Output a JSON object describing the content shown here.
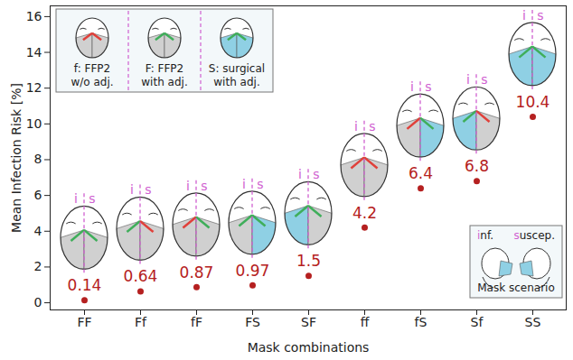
{
  "chart_data": {
    "type": "scatter",
    "x_label": "Mask combinations",
    "y_label": "Mean Infection Risk [%]",
    "categories": [
      "FF",
      "Ff",
      "fF",
      "FS",
      "SF",
      "ff",
      "fS",
      "Sf",
      "SS"
    ],
    "values": [
      0.14,
      0.64,
      0.87,
      0.97,
      1.5,
      4.2,
      6.4,
      6.8,
      10.4
    ],
    "color": "#b52020",
    "marker": "dot",
    "data_labels": true,
    "grid": false,
    "ylim": [
      -0.4,
      16.6
    ],
    "yticks": [
      0,
      2,
      4,
      6,
      8,
      10,
      12,
      14,
      16
    ],
    "head_labels": [
      "i",
      "s"
    ],
    "mask_key": {
      "f": {
        "label": [
          "f: FFP2",
          "w/o adj."
        ],
        "colors": [
          "#d0d0d0",
          "#e0403a"
        ]
      },
      "F": {
        "label": [
          "F: FFP2",
          "with adj."
        ],
        "colors": [
          "#d0d0d0",
          "#3fae5a"
        ]
      },
      "S": {
        "label": [
          "S: surgical",
          "with adj."
        ],
        "colors": [
          "#8fd0e4",
          "#3fae5a"
        ]
      }
    },
    "inset": {
      "labels": [
        "inf.",
        "suscep."
      ],
      "title": "Mask scenario"
    }
  }
}
